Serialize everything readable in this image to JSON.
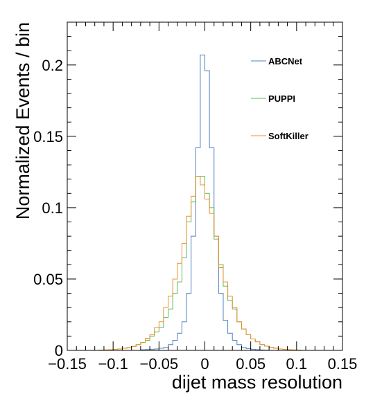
{
  "chart_data": {
    "type": "histogram",
    "title": "",
    "xlabel": "dijet mass resolution",
    "ylabel": "Normalized Events / bin",
    "xlim": [
      -0.15,
      0.15
    ],
    "ylim": [
      0,
      0.23
    ],
    "grid": false,
    "legend_position": "top-right",
    "x_ticks": [
      -0.15,
      -0.1,
      -0.05,
      0,
      0.05,
      0.1,
      0.15
    ],
    "x_tick_labels": [
      "−0.15",
      "−0.1",
      "−0.05",
      "0",
      "0.05",
      "0.1",
      "0.15"
    ],
    "y_ticks": [
      0,
      0.05,
      0.1,
      0.15,
      0.2
    ],
    "y_tick_labels": [
      "0",
      "0.05",
      "0.1",
      "0.15",
      "0.2"
    ],
    "bin_edges": [
      -0.15,
      -0.145,
      -0.14,
      -0.135,
      -0.13,
      -0.125,
      -0.12,
      -0.115,
      -0.11,
      -0.105,
      -0.1,
      -0.095,
      -0.09,
      -0.085,
      -0.08,
      -0.075,
      -0.07,
      -0.065,
      -0.06,
      -0.055,
      -0.05,
      -0.045,
      -0.04,
      -0.035,
      -0.03,
      -0.025,
      -0.02,
      -0.015,
      -0.01,
      -0.005,
      0,
      0.005,
      0.01,
      0.015,
      0.02,
      0.025,
      0.03,
      0.035,
      0.04,
      0.045,
      0.05,
      0.055,
      0.06,
      0.065,
      0.07,
      0.075,
      0.08,
      0.085,
      0.09,
      0.095,
      0.1,
      0.105,
      0.11,
      0.115,
      0.12,
      0.125,
      0.13,
      0.135,
      0.14,
      0.145,
      0.15
    ],
    "series": [
      {
        "name": "ABCNet",
        "color": "#4f7fc0",
        "values": [
          0,
          0,
          0,
          0,
          0,
          0,
          0,
          0,
          0,
          0,
          0,
          0,
          0,
          0,
          0,
          0,
          0.0004,
          0.0006,
          0.0008,
          0.001,
          0.0015,
          0.002,
          0.004,
          0.007,
          0.012,
          0.02,
          0.04,
          0.08,
          0.142,
          0.207,
          0.196,
          0.142,
          0.08,
          0.04,
          0.021,
          0.012,
          0.007,
          0.004,
          0.002,
          0.0013,
          0.0008,
          0.0005,
          0.0003,
          0.0002,
          0,
          0,
          0,
          0,
          0,
          0,
          0,
          0,
          0,
          0,
          0,
          0,
          0,
          0,
          0,
          0
        ]
      },
      {
        "name": "PUPPI",
        "color": "#5cb85c",
        "values": [
          0,
          0,
          0,
          0,
          0,
          0,
          0,
          0.0002,
          0.0003,
          0.0005,
          0.0007,
          0.001,
          0.0015,
          0.002,
          0.0028,
          0.004,
          0.0055,
          0.007,
          0.01,
          0.013,
          0.016,
          0.023,
          0.029,
          0.04,
          0.048,
          0.065,
          0.09,
          0.104,
          0.122,
          0.122,
          0.11,
          0.1,
          0.078,
          0.06,
          0.045,
          0.035,
          0.029,
          0.02,
          0.015,
          0.011,
          0.008,
          0.006,
          0.004,
          0.003,
          0.0022,
          0.0015,
          0.001,
          0.0007,
          0.0005,
          0.0003,
          0.0002,
          0,
          0,
          0,
          0,
          0,
          0,
          0,
          0,
          0
        ]
      },
      {
        "name": "SoftKiller",
        "color": "#e8902a",
        "values": [
          0,
          0,
          0,
          0,
          0,
          0,
          0,
          0.0002,
          0.0003,
          0.0005,
          0.0007,
          0.001,
          0.0015,
          0.002,
          0.0028,
          0.004,
          0.0055,
          0.0085,
          0.011,
          0.016,
          0.02,
          0.03,
          0.038,
          0.05,
          0.061,
          0.075,
          0.094,
          0.108,
          0.122,
          0.116,
          0.106,
          0.096,
          0.08,
          0.058,
          0.048,
          0.038,
          0.03,
          0.02,
          0.015,
          0.011,
          0.008,
          0.006,
          0.004,
          0.003,
          0.0022,
          0.0015,
          0.001,
          0.0007,
          0.0005,
          0.0003,
          0.0002,
          0,
          0,
          0,
          0,
          0,
          0,
          0,
          0,
          0
        ]
      }
    ]
  }
}
